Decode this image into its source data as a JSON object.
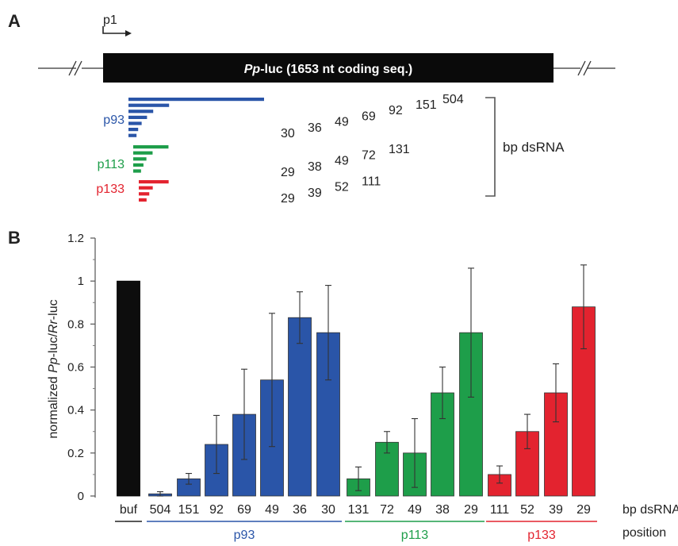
{
  "panel_a": {
    "label": "A",
    "promoter": "p1",
    "gene_italic": "Pp",
    "gene_rest": "-luc (1653 nt coding seq.)",
    "bracket_label": "bp dsRNA",
    "groups": [
      {
        "name": "p93",
        "color": "#2a55a8",
        "lengths": [
          504,
          151,
          92,
          69,
          49,
          36,
          30
        ]
      },
      {
        "name": "p113",
        "color": "#1e9e4a",
        "lengths": [
          131,
          72,
          49,
          38,
          29
        ]
      },
      {
        "name": "p133",
        "color": "#e3232f",
        "lengths": [
          111,
          52,
          39,
          29
        ]
      }
    ]
  },
  "panel_b": {
    "label": "B",
    "ylabel_parts": [
      "normalized ",
      "Pp",
      "-luc/",
      "Rr",
      "-luc"
    ],
    "bp_label": "bp dsRNA",
    "position_label": "position"
  },
  "chart_data": {
    "type": "bar",
    "categories": [
      "buf",
      "504",
      "151",
      "92",
      "69",
      "49",
      "36",
      "30",
      "131",
      "72",
      "49",
      "38",
      "29",
      "111",
      "52",
      "39",
      "29"
    ],
    "values": [
      1.0,
      0.01,
      0.08,
      0.24,
      0.38,
      0.54,
      0.83,
      0.76,
      0.08,
      0.25,
      0.2,
      0.48,
      0.76,
      0.1,
      0.3,
      0.48,
      0.88
    ],
    "errors": [
      0,
      0.01,
      0.025,
      0.135,
      0.21,
      0.31,
      0.12,
      0.22,
      0.055,
      0.05,
      0.16,
      0.12,
      0.3,
      0.04,
      0.08,
      0.135,
      0.195
    ],
    "bar_colors": [
      "#0d0d0d",
      "#2a55a8",
      "#2a55a8",
      "#2a55a8",
      "#2a55a8",
      "#2a55a8",
      "#2a55a8",
      "#2a55a8",
      "#1e9e4a",
      "#1e9e4a",
      "#1e9e4a",
      "#1e9e4a",
      "#1e9e4a",
      "#e3232f",
      "#e3232f",
      "#e3232f",
      "#e3232f"
    ],
    "groups": [
      {
        "name": "",
        "color": "#222222",
        "from": 0,
        "to": 0
      },
      {
        "name": "p93",
        "color": "#2a55a8",
        "from": 1,
        "to": 7
      },
      {
        "name": "p113",
        "color": "#1e9e4a",
        "from": 8,
        "to": 12
      },
      {
        "name": "p133",
        "color": "#e3232f",
        "from": 13,
        "to": 16
      }
    ],
    "ylim": [
      0,
      1.2
    ],
    "yticks": [
      "0",
      "0.2",
      "0.4",
      "0.6",
      "0.8",
      "1",
      "1.2"
    ],
    "grid": false
  }
}
